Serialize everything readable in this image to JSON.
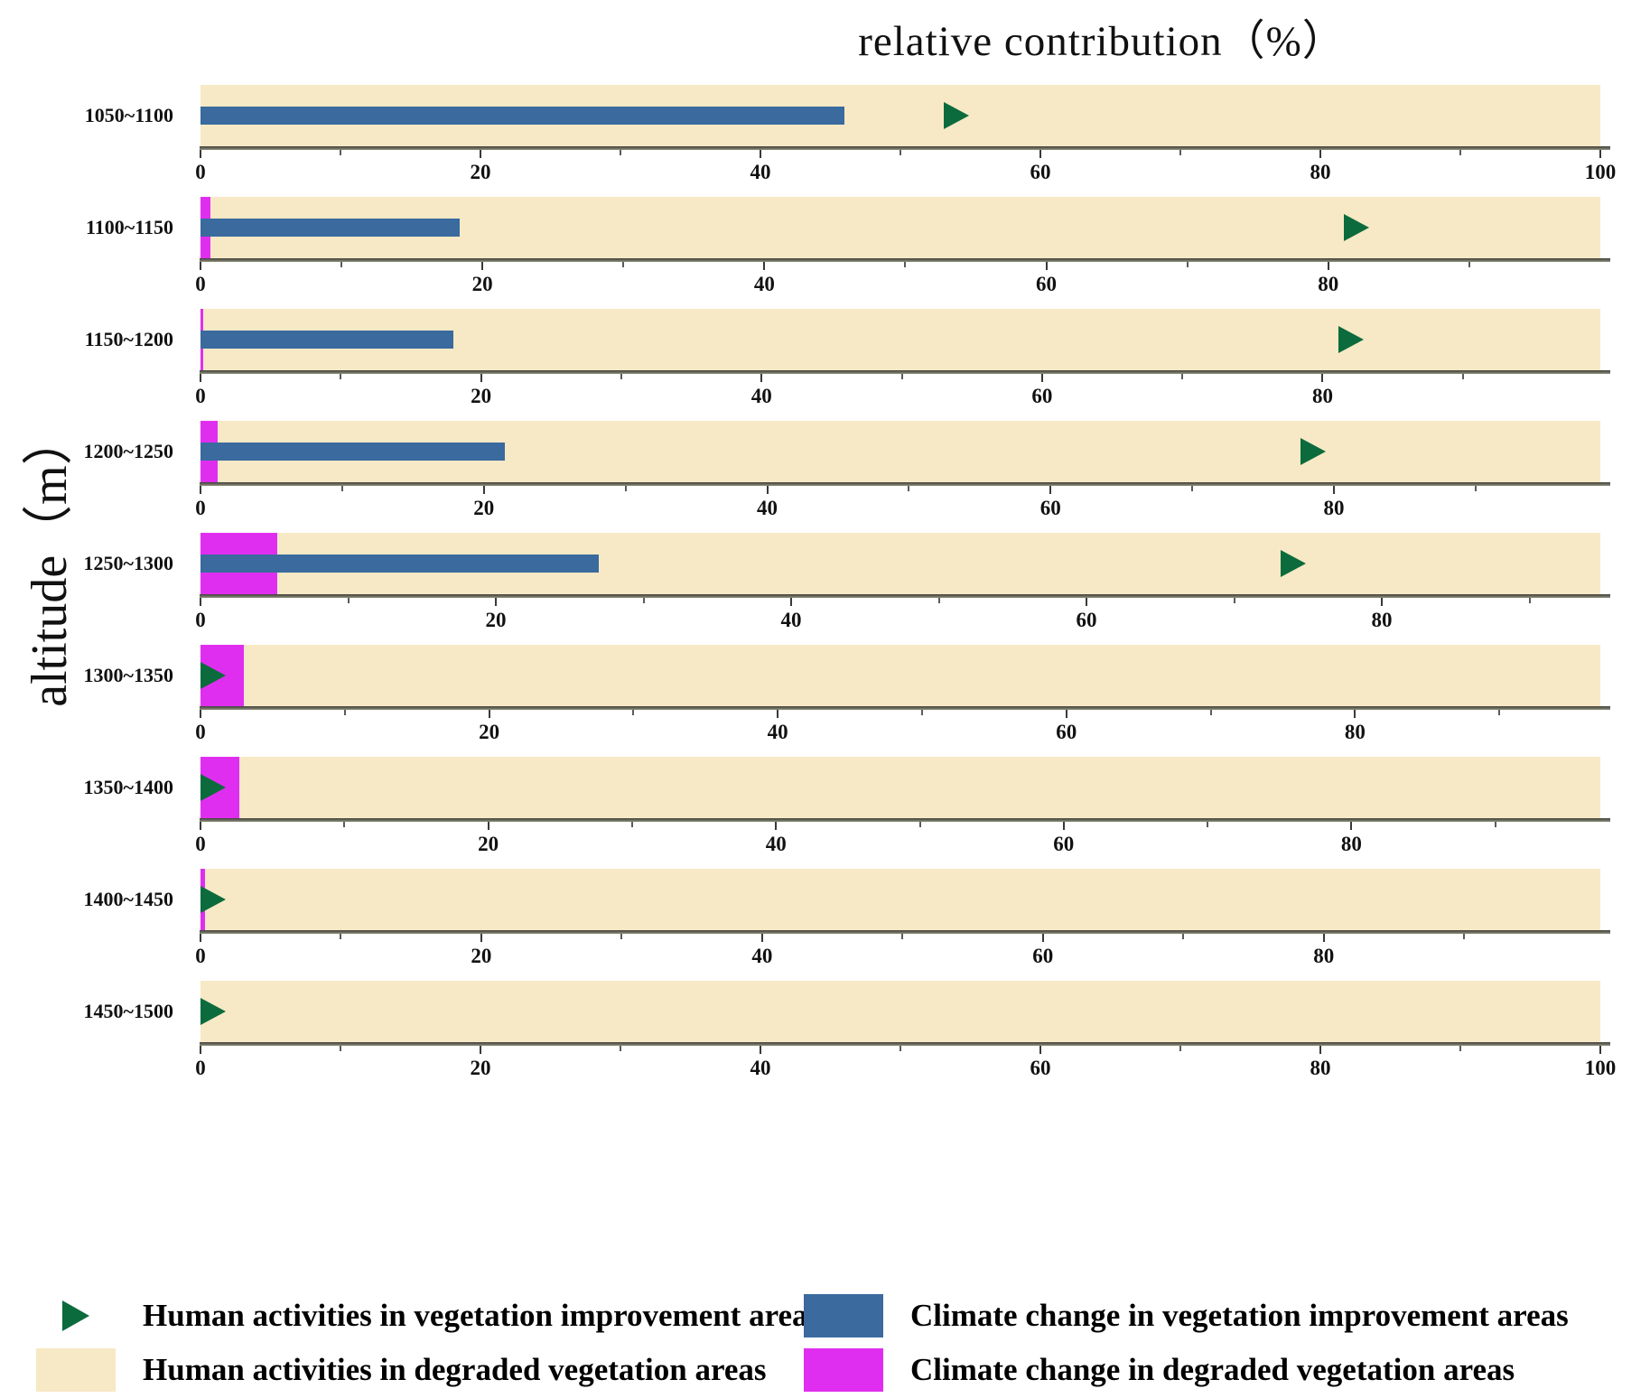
{
  "chart_data": {
    "type": "bar",
    "orientation": "horizontal",
    "title": "relative contribution（%）",
    "ylabel": "altitude（m）",
    "x_major_tick_step": 20,
    "x_minor_tick_step": 10,
    "panels": [
      {
        "label": "1050~1100",
        "human_improvement_marker": 54,
        "human_degraded": 100,
        "climate_improvement": 46,
        "climate_degraded": 0,
        "tick_max": 100
      },
      {
        "label": "1100~1150",
        "human_improvement_marker": 82,
        "human_degraded": 99.3,
        "climate_improvement": 18.4,
        "climate_degraded": 0.7,
        "tick_max": 80
      },
      {
        "label": "1150~1200",
        "human_improvement_marker": 82,
        "human_degraded": 99.8,
        "climate_improvement": 18,
        "climate_degraded": 0.2,
        "tick_max": 80
      },
      {
        "label": "1200~1250",
        "human_improvement_marker": 78.5,
        "human_degraded": 98.8,
        "climate_improvement": 21.5,
        "climate_degraded": 1.2,
        "tick_max": 80
      },
      {
        "label": "1250~1300",
        "human_improvement_marker": 74,
        "human_degraded": 94.8,
        "climate_improvement": 27,
        "climate_degraded": 5.2,
        "tick_max": 80
      },
      {
        "label": "1300~1350",
        "human_improvement_marker": 0.5,
        "human_degraded": 97,
        "climate_improvement": null,
        "climate_degraded": 3,
        "tick_max": 80
      },
      {
        "label": "1350~1400",
        "human_improvement_marker": 0.5,
        "human_degraded": 97.3,
        "climate_improvement": null,
        "climate_degraded": 2.7,
        "tick_max": 80
      },
      {
        "label": "1400~1450",
        "human_improvement_marker": 0.5,
        "human_degraded": 99.7,
        "climate_improvement": null,
        "climate_degraded": 0.3,
        "tick_max": 80
      },
      {
        "label": "1450~1500",
        "human_improvement_marker": 0.5,
        "human_degraded": 100,
        "climate_improvement": null,
        "climate_degraded": 0,
        "tick_max": 100
      }
    ]
  },
  "colors": {
    "human_improvement": "#0c6b3d",
    "human_degraded": "#f7e9c5",
    "climate_improvement": "#3a6a9e",
    "climate_degraded": "#e02ef0"
  },
  "legend": {
    "items": [
      {
        "label": "Human activities in vegetation improvement areas",
        "swatch": "triangle",
        "color_key": "human_improvement"
      },
      {
        "label": "Human activities in degraded vegetation areas",
        "swatch": "rect",
        "color_key": "human_degraded"
      },
      {
        "label": "Climate change in vegetation improvement areas",
        "swatch": "rect",
        "color_key": "climate_improvement"
      },
      {
        "label": "Climate change in degraded vegetation areas",
        "swatch": "rect",
        "color_key": "climate_degraded"
      }
    ]
  }
}
